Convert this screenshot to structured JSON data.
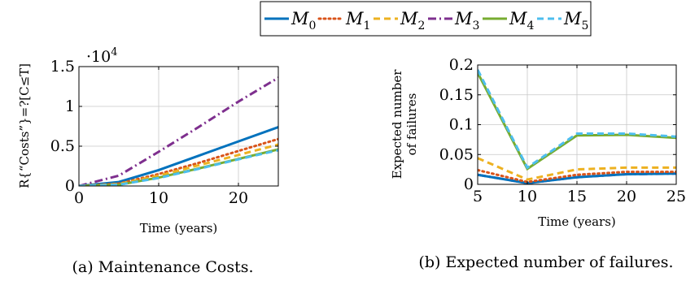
{
  "legend": {
    "items": [
      {
        "name": "M",
        "sub": "0",
        "color": "#0072BD",
        "dash": "solid"
      },
      {
        "name": "M",
        "sub": "1",
        "color": "#D95319",
        "dash": "dotted"
      },
      {
        "name": "M",
        "sub": "2",
        "color": "#EDB120",
        "dash": "dashed"
      },
      {
        "name": "M",
        "sub": "3",
        "color": "#7E2F8E",
        "dash": "dashdot"
      },
      {
        "name": "M",
        "sub": "4",
        "color": "#77AC30",
        "dash": "solid"
      },
      {
        "name": "M",
        "sub": "5",
        "color": "#4DBEEE",
        "dash": "dashed"
      }
    ]
  },
  "chart_data": [
    {
      "type": "line",
      "caption": "(a) Maintenance Costs.",
      "xlabel": "Time (years)",
      "ylabel": "R{“Costs”}=?[C≤T]",
      "scale_label": "·10",
      "scale_exp": "4",
      "xlim": [
        0,
        25
      ],
      "ylim": [
        0,
        15000
      ],
      "xticks": [
        0,
        10,
        20
      ],
      "yticks": [
        0,
        5000,
        10000,
        15000
      ],
      "ytick_labels": [
        "0",
        "0.5",
        "1",
        "1.5"
      ],
      "grid": true,
      "x": [
        0,
        5,
        10,
        15,
        20,
        25
      ],
      "series": [
        {
          "name": "M0",
          "values": [
            0,
            500,
            2000,
            3800,
            5600,
            7400
          ]
        },
        {
          "name": "M1",
          "values": [
            0,
            300,
            1500,
            2900,
            4400,
            5900
          ]
        },
        {
          "name": "M2",
          "values": [
            0,
            250,
            1300,
            2600,
            3900,
            5200
          ]
        },
        {
          "name": "M3",
          "values": [
            0,
            1300,
            4300,
            7400,
            10600,
            13600
          ]
        },
        {
          "name": "M4",
          "values": [
            0,
            150,
            1050,
            2200,
            3400,
            4600
          ]
        },
        {
          "name": "M5",
          "values": [
            0,
            150,
            1000,
            2150,
            3350,
            4500
          ]
        }
      ]
    },
    {
      "type": "line",
      "caption": "(b) Expected number of failures.",
      "xlabel": "Time (years)",
      "ylabel_lines": [
        "Expected number",
        "of failures"
      ],
      "xlim": [
        5,
        25
      ],
      "ylim": [
        0,
        0.2
      ],
      "xticks": [
        5,
        10,
        15,
        20,
        25
      ],
      "yticks": [
        0,
        0.05,
        0.1,
        0.15,
        0.2
      ],
      "ytick_labels": [
        "0",
        "0.05",
        "0.1",
        "0.15",
        "0.2"
      ],
      "grid": true,
      "x": [
        5,
        10,
        15,
        20,
        25
      ],
      "series": [
        {
          "name": "M0",
          "values": [
            0.016,
            0.002,
            0.012,
            0.017,
            0.018
          ]
        },
        {
          "name": "M1",
          "values": [
            0.024,
            0.004,
            0.016,
            0.021,
            0.021
          ]
        },
        {
          "name": "M2",
          "values": [
            0.044,
            0.008,
            0.025,
            0.028,
            0.028
          ]
        },
        {
          "name": "M3",
          "values": [
            0.016,
            0.002,
            0.012,
            0.017,
            0.018
          ]
        },
        {
          "name": "M4",
          "values": [
            0.187,
            0.026,
            0.082,
            0.083,
            0.078
          ]
        },
        {
          "name": "M5",
          "values": [
            0.192,
            0.028,
            0.085,
            0.085,
            0.08
          ]
        }
      ]
    }
  ]
}
